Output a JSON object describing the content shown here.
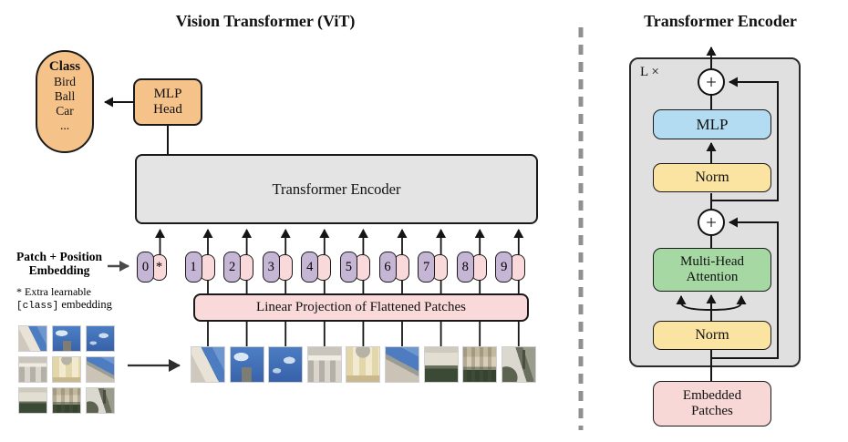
{
  "left": {
    "title": "Vision Transformer (ViT)",
    "class_pill": {
      "header": "Class",
      "items": [
        "Bird",
        "Ball",
        "Car",
        "..."
      ]
    },
    "mlp_head": "MLP\nHead",
    "encoder_label": "Transformer Encoder",
    "patch_pos_label": "Patch + Position\nEmbedding",
    "note_line1": "* Extra learnable",
    "note_code": "[class]",
    "note_rest": " embedding",
    "linear_projection_label": "Linear Projection of Flattened Patches",
    "tokens": [
      "0",
      "1",
      "2",
      "3",
      "4",
      "5",
      "6",
      "7",
      "8",
      "9"
    ],
    "class_token": "*",
    "patches": [
      "facade-and-sky",
      "tower-and-sky",
      "sky",
      "stone-facade",
      "palace-facade",
      "facade-and-sky-2",
      "building-and-hedge",
      "facade-and-hedge",
      "path-and-trees"
    ]
  },
  "right": {
    "title": "Transformer Encoder",
    "loop_label": "L ×",
    "plus_top": "+",
    "plus_bottom": "+",
    "mlp_label": "MLP",
    "norm_top_label": "Norm",
    "mha_label": "Multi-Head\nAttention",
    "norm_bottom_label": "Norm",
    "embedded_label": "Embedded\nPatches"
  },
  "colors": {
    "orange": "#F5C289",
    "token_purple": "#C6B6D5",
    "token_pink": "#FAD9DA",
    "box_gray": "#E4E4E4",
    "panel_gray": "#E0E0E0",
    "mlp_blue": "#B3DBF2",
    "norm_yellow": "#FBE3A1",
    "attention_green": "#A6D8A4",
    "embedded_pink": "#F8D7D7",
    "divider_gray": "#909090"
  }
}
